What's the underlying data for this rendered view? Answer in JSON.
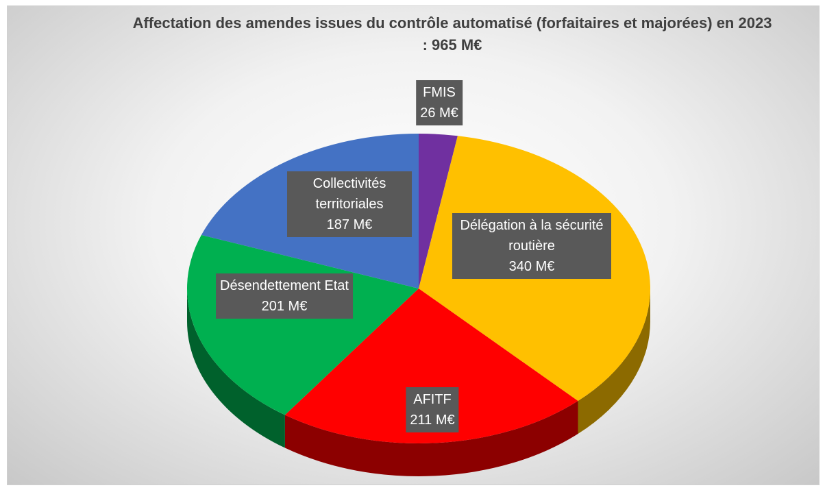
{
  "chart_data": {
    "type": "pie",
    "title": "Affectation des amendes issues du contrôle automatisé (forfaitaires et majorées) en 2023 : 965 M€",
    "categories": [
      "FMIS",
      "Délégation à la sécurité routière",
      "AFITF",
      "Désendettement Etat",
      "Collectivités territoriales"
    ],
    "values": [
      26,
      340,
      211,
      201,
      187
    ],
    "value_labels": [
      "26 M€",
      "340 M€",
      "211 M€",
      "201 M€",
      "187 M€"
    ],
    "colors": [
      "#7030a0",
      "#ffc000",
      "#ff0000",
      "#00b050",
      "#4472c4"
    ]
  }
}
